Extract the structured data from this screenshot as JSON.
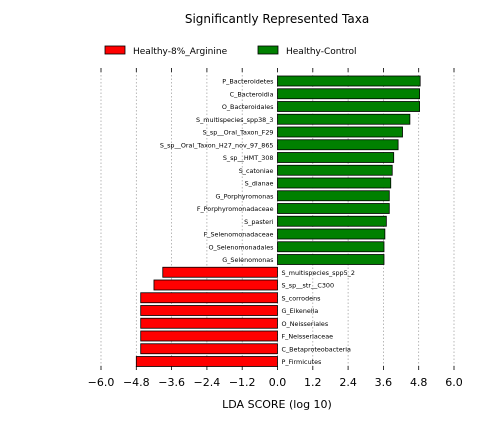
{
  "chart_data": {
    "type": "bar",
    "orientation": "horizontal",
    "title": "Significantly Represented Taxa",
    "xlabel": "LDA SCORE (log 10)",
    "ylabel": "",
    "xlim": [
      -6.0,
      6.0
    ],
    "xticks": [
      -6.0,
      -4.8,
      -3.6,
      -2.4,
      -1.2,
      0.0,
      1.2,
      2.4,
      3.6,
      4.8,
      6.0
    ],
    "xtick_labels": [
      "−6.0",
      "−4.8",
      "−3.6",
      "−2.4",
      "−1.2",
      "0.0",
      "1.2",
      "2.4",
      "3.6",
      "4.8",
      "6.0"
    ],
    "grid": "vertical dotted",
    "legend_position": "top",
    "legend": [
      {
        "name": "Healthy-8%_Arginine",
        "color": "#ff0000"
      },
      {
        "name": "Healthy-Control",
        "color": "#008000"
      }
    ],
    "categories": [
      "P_Bacteroidetes",
      "C_Bacteroidia",
      "O_Bacteroidales",
      "S_multispecies_spp38_3",
      "S_sp__Oral_Taxon_F29",
      "S_sp__Oral_Taxon_H27_nov_97_865",
      "S_sp__HMT_308",
      "S_catoniae",
      "S_dianae",
      "G_Porphyromonas",
      "F_Porphyromonadaceae",
      "S_pasteri",
      "F_Selenomonadaceae",
      "O_Selenomonadales",
      "G_Selenomonas",
      "S_multispecies_spp5_2",
      "S_sp__str__C300",
      "S_corrodens",
      "G_Eikenella",
      "O_Neisseriales",
      "F_Neisseriaceae",
      "C_Betaproteobacteria",
      "P_Firmicutes"
    ],
    "values": [
      4.85,
      4.83,
      4.83,
      4.5,
      4.25,
      4.1,
      3.95,
      3.9,
      3.85,
      3.8,
      3.8,
      3.7,
      3.65,
      3.62,
      3.62,
      -3.9,
      -4.2,
      -4.65,
      -4.65,
      -4.65,
      -4.65,
      -4.65,
      -4.8
    ],
    "group": [
      "Healthy-Control",
      "Healthy-Control",
      "Healthy-Control",
      "Healthy-Control",
      "Healthy-Control",
      "Healthy-Control",
      "Healthy-Control",
      "Healthy-Control",
      "Healthy-Control",
      "Healthy-Control",
      "Healthy-Control",
      "Healthy-Control",
      "Healthy-Control",
      "Healthy-Control",
      "Healthy-Control",
      "Healthy-8%_Arginine",
      "Healthy-8%_Arginine",
      "Healthy-8%_Arginine",
      "Healthy-8%_Arginine",
      "Healthy-8%_Arginine",
      "Healthy-8%_Arginine",
      "Healthy-8%_Arginine",
      "Healthy-8%_Arginine"
    ]
  }
}
